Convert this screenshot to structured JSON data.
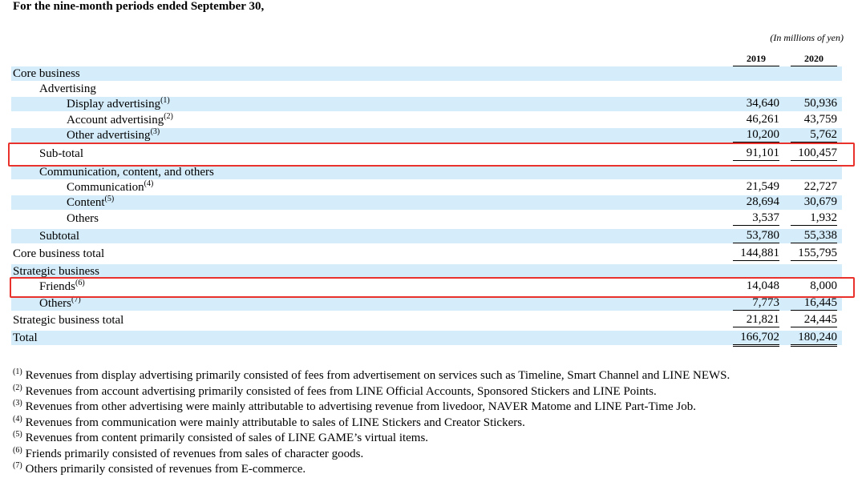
{
  "heading": "For the nine-month periods ended September 30,",
  "units": "(In millions of yen)",
  "columns": [
    "2019",
    "2020"
  ],
  "rows": [
    {
      "label": "Core business",
      "level": 0,
      "shade": true,
      "v19": "",
      "v20": ""
    },
    {
      "label": "Advertising",
      "level": 1,
      "shade": false,
      "v19": "",
      "v20": ""
    },
    {
      "label": "Display advertising",
      "ref": "(1)",
      "level": 2,
      "shade": true,
      "v19": "34,640",
      "v20": "50,936"
    },
    {
      "label": "Account advertising",
      "ref": "(2)",
      "level": 2,
      "shade": false,
      "v19": "46,261",
      "v20": "43,759"
    },
    {
      "label": "Other advertising",
      "ref": "(3)",
      "level": 2,
      "shade": true,
      "v19": "10,200",
      "v20": "5,762",
      "underline": "single"
    },
    {
      "label": "Sub-total",
      "level": 1,
      "shade": false,
      "v19": "91,101",
      "v20": "100,457",
      "underline": "single"
    },
    {
      "label": "Communication, content, and others",
      "level": 1,
      "shade": true,
      "v19": "",
      "v20": ""
    },
    {
      "label": "Communication",
      "ref": "(4)",
      "level": 2,
      "shade": false,
      "v19": "21,549",
      "v20": "22,727"
    },
    {
      "label": "Content",
      "ref": "(5)",
      "level": 2,
      "shade": true,
      "v19": "28,694",
      "v20": "30,679"
    },
    {
      "label": "Others",
      "level": 2,
      "shade": false,
      "v19": "3,537",
      "v20": "1,932",
      "underline": "single"
    },
    {
      "label": "Subtotal",
      "level": 1,
      "shade": true,
      "v19": "53,780",
      "v20": "55,338",
      "underline": "single"
    },
    {
      "label": "Core business total",
      "level": 0,
      "shade": false,
      "v19": "144,881",
      "v20": "155,795",
      "underline": "single"
    },
    {
      "label": "Strategic business",
      "level": 0,
      "shade": true,
      "v19": "",
      "v20": ""
    },
    {
      "label": "Friends",
      "ref": "(6)",
      "level": 1,
      "shade": false,
      "v19": "14,048",
      "v20": "8,000"
    },
    {
      "label": "Others",
      "ref": "(7)",
      "level": 1,
      "shade": true,
      "v19": "7,773",
      "v20": "16,445",
      "underline": "single"
    },
    {
      "label": "Strategic business total",
      "level": 0,
      "shade": false,
      "v19": "21,821",
      "v20": "24,445",
      "underline": "single"
    },
    {
      "label": "Total",
      "level": 0,
      "shade": true,
      "v19": "166,702",
      "v20": "180,240",
      "underline": "double"
    }
  ],
  "footnotes": [
    {
      "ref": "(1)",
      "text": "Revenues from display advertising primarily consisted of fees from advertisement on services such as Timeline, Smart Channel and LINE NEWS."
    },
    {
      "ref": "(2)",
      "text": "Revenues from account advertising primarily consisted of fees from LINE Official Accounts, Sponsored Stickers and LINE Points."
    },
    {
      "ref": "(3)",
      "text": "Revenues from other advertising were mainly attributable to advertising revenue from livedoor, NAVER Matome and LINE Part-Time Job."
    },
    {
      "ref": "(4)",
      "text": "Revenues from communication were mainly attributable to sales of LINE Stickers and Creator Stickers."
    },
    {
      "ref": "(5)",
      "text": "Revenues from content primarily consisted of sales of LINE GAME’s virtual items."
    },
    {
      "ref": "(6)",
      "text": "Friends primarily consisted of revenues from sales of character goods."
    },
    {
      "ref": "(7)",
      "text": "Others primarily consisted of revenues from E-commerce."
    }
  ],
  "highlights": [
    "Sub-total",
    "Friends"
  ],
  "colors": {
    "row_shade": "#d5ecfa",
    "highlight_border": "#e8322b"
  }
}
